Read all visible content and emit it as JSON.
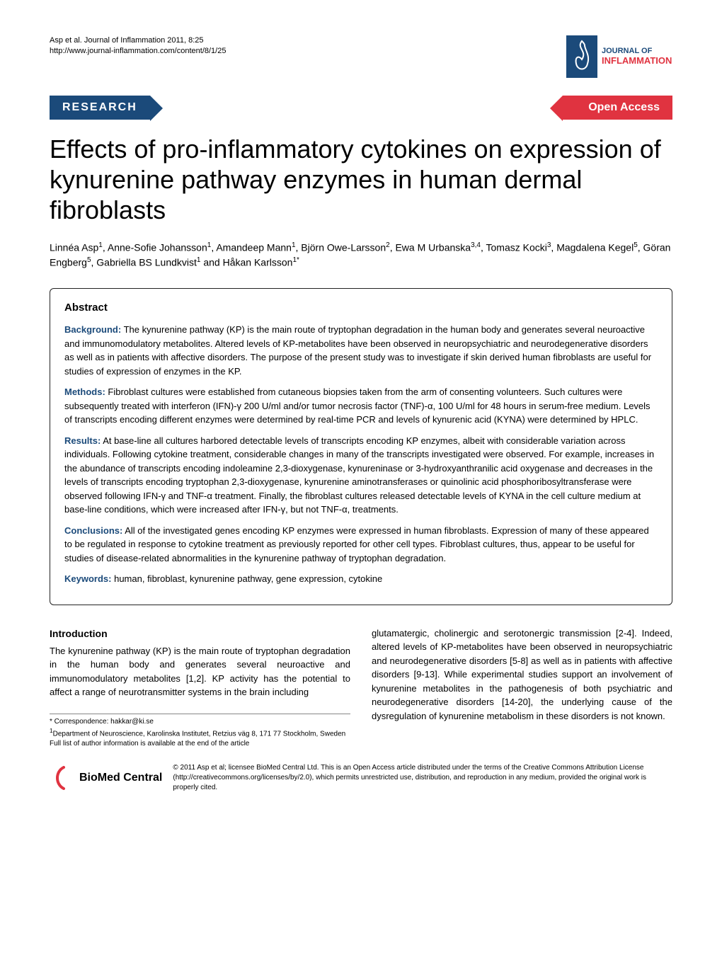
{
  "running_head": {
    "citation": "Asp et al. Journal of Inflammation 2011, 8:25",
    "url": "http://www.journal-inflammation.com/content/8/1/25",
    "journal_name_top": "JOURNAL OF",
    "journal_name_bottom": "INFLAMMATION"
  },
  "banner": {
    "left": "RESEARCH",
    "right": "Open Access"
  },
  "title": "Effects of pro-inflammatory cytokines on expression of kynurenine pathway enzymes in human dermal fibroroblasts",
  "title_actual": "Effects of pro-inflammatory cytokines on expression of kynurenine pathway enzymes in human dermal fibroblasts",
  "authors_html": "Linnéa Asp<sup>1</sup>, Anne-Sofie Johansson<sup>1</sup>, Amandeep Mann<sup>1</sup>, Björn Owe-Larsson<sup>2</sup>, Ewa M Urbanska<sup>3,4</sup>, Tomasz Kocki<sup>3</sup>, Magdalena Kegel<sup>5</sup>, Göran Engberg<sup>5</sup>, Gabriella BS Lundkvist<sup>1</sup> and Håkan Karlsson<sup>1*</sup>",
  "abstract": {
    "heading": "Abstract",
    "sections": [
      {
        "label": "Background:",
        "text": "The kynurenine pathway (KP) is the main route of tryptophan degradation in the human body and generates several neuroactive and immunomodulatory metabolites. Altered levels of KP-metabolites have been observed in neuropsychiatric and neurodegenerative disorders as well as in patients with affective disorders. The purpose of the present study was to investigate if skin derived human fibroblasts are useful for studies of expression of enzymes in the KP."
      },
      {
        "label": "Methods:",
        "text": "Fibroblast cultures were established from cutaneous biopsies taken from the arm of consenting volunteers. Such cultures were subsequently treated with interferon (IFN)-γ 200 U/ml and/or tumor necrosis factor (TNF)-α, 100 U/ml for 48 hours in serum-free medium. Levels of transcripts encoding different enzymes were determined by real-time PCR and levels of kynurenic acid (KYNA) were determined by HPLC."
      },
      {
        "label": "Results:",
        "text": "At base-line all cultures harbored detectable levels of transcripts encoding KP enzymes, albeit with considerable variation across individuals. Following cytokine treatment, considerable changes in many of the transcripts investigated were observed. For example, increases in the abundance of transcripts encoding indoleamine 2,3-dioxygenase, kynureninase or 3-hydroxyanthranilic acid oxygenase and decreases in the levels of transcripts encoding tryptophan 2,3-dioxygenase, kynurenine aminotransferases or quinolinic acid phosphoribosyltransferase were observed following IFN-γ and TNF-α treatment. Finally, the fibroblast cultures released detectable levels of KYNA in the cell culture medium at base-line conditions, which were increased after IFN-γ, but not TNF-α, treatments."
      },
      {
        "label": "Conclusions:",
        "text": "All of the investigated genes encoding KP enzymes were expressed in human fibroblasts. Expression of many of these appeared to be regulated in response to cytokine treatment as previously reported for other cell types. Fibroblast cultures, thus, appear to be useful for studies of disease-related abnormalities in the kynurenine pathway of tryptophan degradation."
      },
      {
        "label": "Keywords:",
        "text": "human, fibroblast, kynurenine pathway, gene expression, cytokine"
      }
    ]
  },
  "body": {
    "introduction_heading": "Introduction",
    "col1": "The kynurenine pathway (KP) is the main route of tryptophan degradation in the human body and generates several neuroactive and immunomodulatory metabolites [1,2]. KP activity has the potential to affect a range of neurotransmitter systems in the brain including",
    "col2": "glutamatergic, cholinergic and serotonergic transmission [2-4]. Indeed, altered levels of KP-metabolites have been observed in neuropsychiatric and neurodegenerative disorders [5-8] as well as in patients with affective disorders [9-13]. While experimental studies support an involvement of kynurenine metabolites in the pathogenesis of both psychiatric and neurodegenerative disorders [14-20], the underlying cause of the dysregulation of kynurenine metabolism in these disorders is not known."
  },
  "footnotes": {
    "correspondence": "* Correspondence: hakkar@ki.se",
    "affiliation": "1Department of Neuroscience, Karolinska Institutet, Retzius väg 8, 171 77 Stockholm, Sweden",
    "full_list": "Full list of author information is available at the end of the article"
  },
  "footer": {
    "bmc_name": "BioMed Central",
    "license": "© 2011 Asp et al; licensee BioMed Central Ltd. This is an Open Access article distributed under the terms of the Creative Commons Attribution License (http://creativecommons.org/licenses/by/2.0), which permits unrestricted use, distribution, and reproduction in any medium, provided the original work is properly cited."
  },
  "colors": {
    "banner_left_bg": "#1b4a7a",
    "banner_right_bg": "#e03340",
    "abstract_label": "#1b4a7a",
    "flame_stroke": "#e03340",
    "text": "#000000",
    "background": "#ffffff"
  }
}
